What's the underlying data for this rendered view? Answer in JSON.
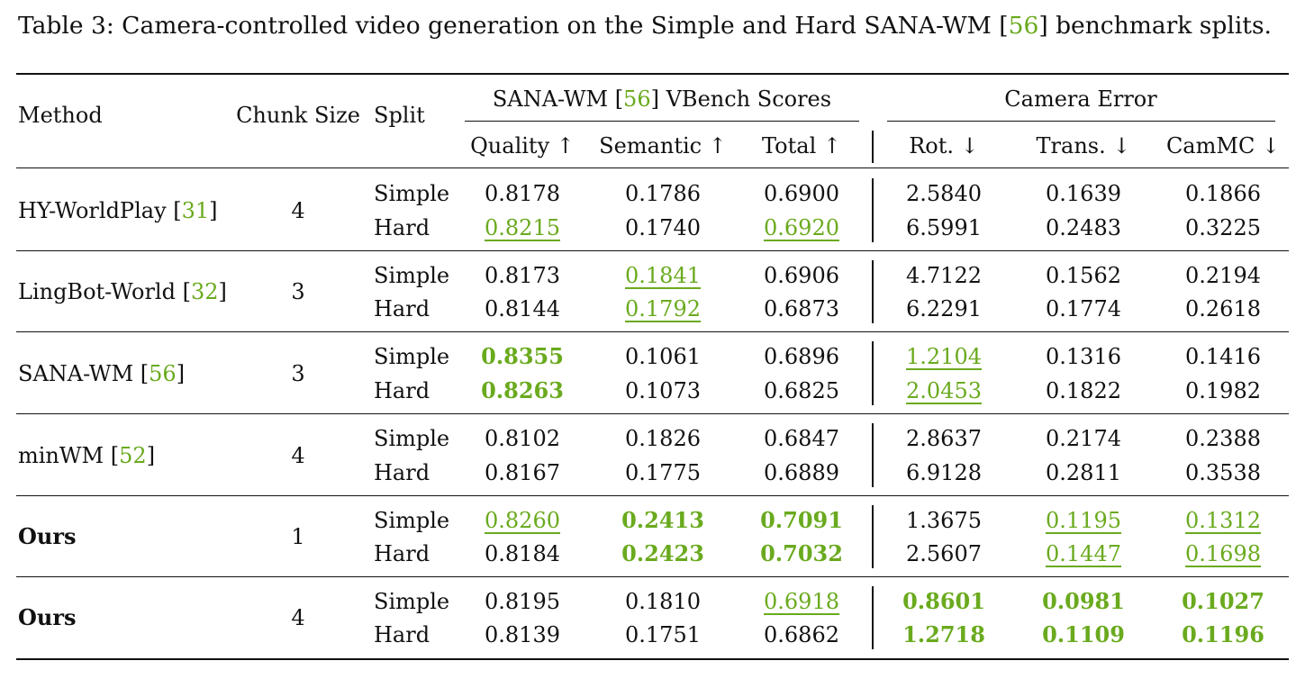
{
  "caption": {
    "prefix": "Table 3: Camera-controlled video generation on the Simple and Hard SANA-WM [",
    "cite": "56",
    "suffix": "] benchmark splits."
  },
  "header": {
    "method": "Method",
    "chunk": "Chunk Size",
    "split": "Split",
    "vbench_prefix": "SANA-WM [",
    "vbench_cite": "56",
    "vbench_suffix": "] VBench Scores",
    "camera": "Camera Error",
    "quality": "Quality ↑",
    "semantic": "Semantic ↑",
    "total": "Total ↑",
    "rot": "Rot. ↓",
    "trans": "Trans. ↓",
    "cammc": "CamMC ↓"
  },
  "rows": [
    {
      "name": "HY-WorldPlay",
      "cite": "31",
      "chunk": "4",
      "name_bold": false,
      "splits": [
        {
          "split": "Simple",
          "vals": [
            "0.8178",
            "0.1786",
            "0.6900",
            "2.5840",
            "0.1639",
            "0.1866"
          ],
          "styles": [
            "",
            "",
            "",
            "",
            "",
            ""
          ]
        },
        {
          "split": "Hard",
          "vals": [
            "0.8215",
            "0.1740",
            "0.6920",
            "6.5991",
            "0.2483",
            "0.3225"
          ],
          "styles": [
            "second",
            "",
            "second",
            "",
            "",
            ""
          ]
        }
      ]
    },
    {
      "name": "LingBot-World",
      "cite": "32",
      "chunk": "3",
      "name_bold": false,
      "splits": [
        {
          "split": "Simple",
          "vals": [
            "0.8173",
            "0.1841",
            "0.6906",
            "4.7122",
            "0.1562",
            "0.2194"
          ],
          "styles": [
            "",
            "second",
            "",
            "",
            "",
            ""
          ]
        },
        {
          "split": "Hard",
          "vals": [
            "0.8144",
            "0.1792",
            "0.6873",
            "6.2291",
            "0.1774",
            "0.2618"
          ],
          "styles": [
            "",
            "second",
            "",
            "",
            "",
            ""
          ]
        }
      ]
    },
    {
      "name": "SANA-WM",
      "cite": "56",
      "chunk": "3",
      "name_bold": false,
      "splits": [
        {
          "split": "Simple",
          "vals": [
            "0.8355",
            "0.1061",
            "0.6896",
            "1.2104",
            "0.1316",
            "0.1416"
          ],
          "styles": [
            "best",
            "",
            "",
            "second",
            "",
            ""
          ]
        },
        {
          "split": "Hard",
          "vals": [
            "0.8263",
            "0.1073",
            "0.6825",
            "2.0453",
            "0.1822",
            "0.1982"
          ],
          "styles": [
            "best",
            "",
            "",
            "second",
            "",
            ""
          ]
        }
      ]
    },
    {
      "name": "minWM",
      "cite": "52",
      "chunk": "4",
      "name_bold": false,
      "splits": [
        {
          "split": "Simple",
          "vals": [
            "0.8102",
            "0.1826",
            "0.6847",
            "2.8637",
            "0.2174",
            "0.2388"
          ],
          "styles": [
            "",
            "",
            "",
            "",
            "",
            ""
          ]
        },
        {
          "split": "Hard",
          "vals": [
            "0.8167",
            "0.1775",
            "0.6889",
            "6.9128",
            "0.2811",
            "0.3538"
          ],
          "styles": [
            "",
            "",
            "",
            "",
            "",
            ""
          ]
        }
      ]
    },
    {
      "name": "Ours",
      "cite": "",
      "chunk": "1",
      "name_bold": true,
      "splits": [
        {
          "split": "Simple",
          "vals": [
            "0.8260",
            "0.2413",
            "0.7091",
            "1.3675",
            "0.1195",
            "0.1312"
          ],
          "styles": [
            "second",
            "best",
            "best",
            "",
            "second",
            "second"
          ]
        },
        {
          "split": "Hard",
          "vals": [
            "0.8184",
            "0.2423",
            "0.7032",
            "2.5607",
            "0.1447",
            "0.1698"
          ],
          "styles": [
            "",
            "best",
            "best",
            "",
            "second",
            "second"
          ]
        }
      ]
    },
    {
      "name": "Ours",
      "cite": "",
      "chunk": "4",
      "name_bold": true,
      "splits": [
        {
          "split": "Simple",
          "vals": [
            "0.8195",
            "0.1810",
            "0.6918",
            "0.8601",
            "0.0981",
            "0.1027"
          ],
          "styles": [
            "",
            "",
            "second",
            "best",
            "best",
            "best"
          ]
        },
        {
          "split": "Hard",
          "vals": [
            "0.8139",
            "0.1751",
            "0.6862",
            "1.2718",
            "0.1109",
            "0.1196"
          ],
          "styles": [
            "",
            "",
            "",
            "best",
            "best",
            "best"
          ]
        }
      ]
    }
  ]
}
